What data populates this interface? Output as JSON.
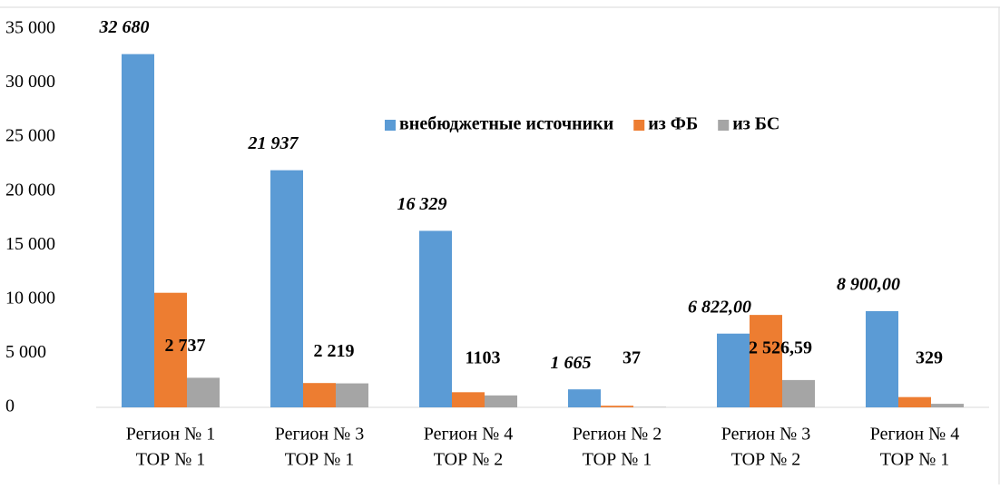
{
  "chart_data": {
    "type": "bar",
    "categories": [
      [
        "Регион № 1",
        "ТОР № 1"
      ],
      [
        "Регион № 3",
        "ТОР № 1"
      ],
      [
        "Регион № 4",
        "ТОР № 2"
      ],
      [
        "Регион № 2",
        "ТОР № 1"
      ],
      [
        "Регион № 3",
        "ТОР № 2"
      ],
      [
        "Регион № 4",
        "ТОР № 1"
      ]
    ],
    "series": [
      {
        "name": "внебюджетные источники",
        "color": "#5b9bd5",
        "values": [
          32680,
          21937,
          16329,
          1665,
          6822,
          8900
        ],
        "value_labels": [
          "32 680",
          "21 937",
          "16 329",
          "1 665",
          "6 822,00",
          "8 900,00"
        ]
      },
      {
        "name": "из ФБ",
        "color": "#ed7d31",
        "values": [
          10600,
          2250,
          1400,
          150,
          8550,
          950
        ]
      },
      {
        "name": "из БС",
        "color": "#a5a5a5",
        "values": [
          2737,
          2219,
          1103,
          37,
          2526.59,
          329
        ],
        "value_labels": [
          "2 737",
          "2 219",
          "1103",
          "37",
          "2 526,59",
          "329"
        ]
      }
    ],
    "ylim": [
      0,
      35000
    ],
    "yticks": [
      0,
      {
        "value": 5000,
        "label": "5 000"
      },
      {
        "value": 10000,
        "label": "10 000"
      },
      {
        "value": 15000,
        "label": "15 000"
      },
      {
        "value": 20000,
        "label": "20 000"
      },
      {
        "value": 25000,
        "label": "25 000"
      },
      {
        "value": 30000,
        "label": "30 000"
      },
      {
        "value": 35000,
        "label": "35 000"
      }
    ],
    "grid": false,
    "legend": "top-right"
  }
}
